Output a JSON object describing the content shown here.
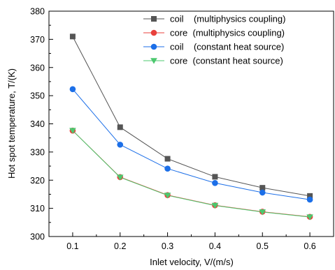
{
  "chart_data": {
    "type": "line",
    "xlabel": "Inlet velocity, V/(m/s)",
    "ylabel": "Hot spot temperature, T/(K)",
    "xlim": [
      0.05,
      0.65
    ],
    "ylim": [
      300,
      380
    ],
    "x_ticks": [
      "0.1",
      "0.2",
      "0.3",
      "0.4",
      "0.5",
      "0.6"
    ],
    "y_ticks": [
      "300",
      "310",
      "320",
      "330",
      "340",
      "350",
      "360",
      "370",
      "380"
    ],
    "x": [
      0.1,
      0.2,
      0.3,
      0.4,
      0.5,
      0.6
    ],
    "legend_position": "top-right",
    "series": [
      {
        "name": "coil    (multiphysics coupling)",
        "color": "#555555",
        "marker": "square",
        "values": [
          371.0,
          338.8,
          327.6,
          321.2,
          317.3,
          314.4
        ]
      },
      {
        "name": "core  (multiphysics coupling)",
        "color": "#e8413c",
        "marker": "circle",
        "values": [
          337.6,
          321.1,
          314.7,
          311.1,
          308.8,
          307.0
        ]
      },
      {
        "name": "coil    (constant heat source)",
        "color": "#1c6fe8",
        "marker": "circle",
        "values": [
          352.3,
          332.6,
          324.1,
          319.0,
          315.6,
          313.1
        ]
      },
      {
        "name": "core  (constant heat source)",
        "color": "#4cc86f",
        "marker": "triangle-down",
        "values": [
          337.6,
          321.0,
          314.6,
          311.0,
          308.7,
          306.9
        ]
      }
    ]
  }
}
